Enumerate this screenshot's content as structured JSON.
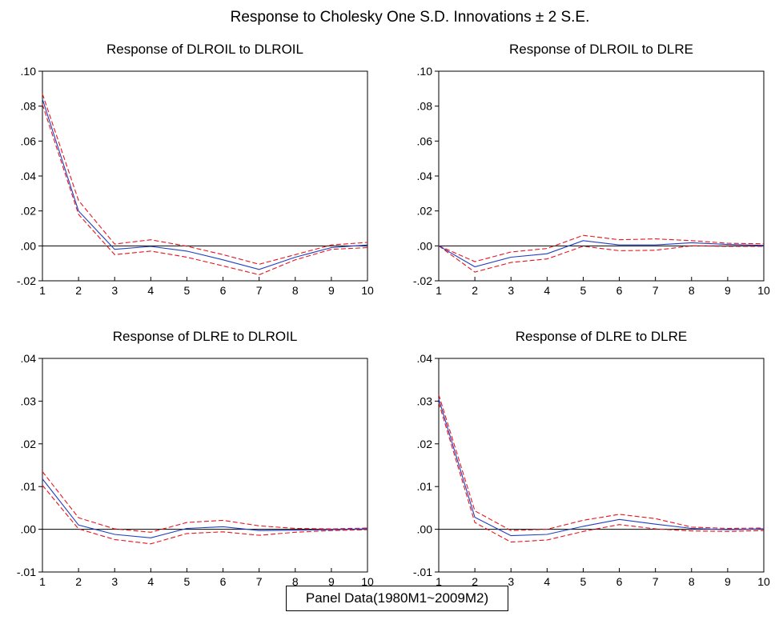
{
  "figure": {
    "title": "Response to Cholesky One S.D. Innovations ± 2 S.E.",
    "footer": "Panel Data(1980M1~2009M2)"
  },
  "colors": {
    "response": "#1f3fbf",
    "band": "#e8141c",
    "zero_line": "#000000",
    "frame": "#000000"
  },
  "chart_data": [
    {
      "type": "line",
      "title": "Response of DLROIL to DLROIL",
      "x": [
        1,
        2,
        3,
        4,
        5,
        6,
        7,
        8,
        9,
        10
      ],
      "x_ticks": [
        "1",
        "2",
        "3",
        "4",
        "5",
        "6",
        "7",
        "8",
        "9",
        "10"
      ],
      "ylim": [
        -0.02,
        0.1
      ],
      "y_ticks": [
        -0.02,
        0.0,
        0.02,
        0.04,
        0.06,
        0.08,
        0.1
      ],
      "y_tick_labels": [
        "-.02",
        ".00",
        ".02",
        ".04",
        ".06",
        ".08",
        ".10"
      ],
      "series": [
        {
          "role": "response",
          "values": [
            0.084,
            0.02,
            -0.002,
            -0.0003,
            -0.003,
            -0.008,
            -0.0135,
            -0.0065,
            -0.001,
            0.0005
          ]
        },
        {
          "role": "upper",
          "values": [
            0.087,
            0.026,
            0.001,
            0.0035,
            -0.0002,
            -0.005,
            -0.0105,
            -0.005,
            0.0005,
            0.002
          ]
        },
        {
          "role": "lower",
          "values": [
            0.081,
            0.018,
            -0.005,
            -0.003,
            -0.0065,
            -0.0115,
            -0.0165,
            -0.008,
            -0.002,
            -0.001
          ]
        }
      ],
      "zero_line": true
    },
    {
      "type": "line",
      "title": "Response of DLROIL to DLRE",
      "x": [
        1,
        2,
        3,
        4,
        5,
        6,
        7,
        8,
        9,
        10
      ],
      "x_ticks": [
        "1",
        "2",
        "3",
        "4",
        "5",
        "6",
        "7",
        "8",
        "9",
        "10"
      ],
      "ylim": [
        -0.02,
        0.1
      ],
      "y_ticks": [
        -0.02,
        0.0,
        0.02,
        0.04,
        0.06,
        0.08,
        0.1
      ],
      "y_tick_labels": [
        "-.02",
        ".00",
        ".02",
        ".04",
        ".06",
        ".08",
        ".10"
      ],
      "series": [
        {
          "role": "response",
          "values": [
            0.0,
            -0.012,
            -0.0065,
            -0.0045,
            0.003,
            0.0005,
            0.0005,
            0.0018,
            0.0008,
            0.0003
          ]
        },
        {
          "role": "upper",
          "values": [
            0.0,
            -0.009,
            -0.0035,
            -0.0015,
            0.006,
            0.0035,
            0.004,
            0.003,
            0.0015,
            0.0012
          ]
        },
        {
          "role": "lower",
          "values": [
            0.0,
            -0.015,
            -0.0095,
            -0.0075,
            -0.0002,
            -0.0028,
            -0.0025,
            0.0,
            -0.0003,
            -0.0003
          ]
        }
      ],
      "zero_line": true
    },
    {
      "type": "line",
      "title": "Response of DLRE to DLROIL",
      "x": [
        1,
        2,
        3,
        4,
        5,
        6,
        7,
        8,
        9,
        10
      ],
      "x_ticks": [
        "1",
        "2",
        "3",
        "4",
        "5",
        "6",
        "7",
        "8",
        "9",
        "10"
      ],
      "ylim": [
        -0.01,
        0.04
      ],
      "y_ticks": [
        -0.01,
        0.0,
        0.01,
        0.02,
        0.03,
        0.04
      ],
      "y_tick_labels": [
        "-.01",
        ".00",
        ".01",
        ".02",
        ".03",
        ".04"
      ],
      "series": [
        {
          "role": "response",
          "values": [
            0.0118,
            0.001,
            -0.0012,
            -0.002,
            0.0002,
            0.0006,
            -0.0003,
            -0.0002,
            -0.0001,
            0.0001
          ]
        },
        {
          "role": "upper",
          "values": [
            0.0135,
            0.0027,
            0.0001,
            -0.0007,
            0.0016,
            0.0021,
            0.0008,
            0.0002,
            0.0001,
            0.0003
          ]
        },
        {
          "role": "lower",
          "values": [
            0.0103,
            0.0001,
            -0.0024,
            -0.0034,
            -0.001,
            -0.0006,
            -0.0014,
            -0.0007,
            -0.0003,
            -0.0001
          ]
        }
      ],
      "zero_line": true
    },
    {
      "type": "line",
      "title": "Response of DLRE to DLRE",
      "x": [
        1,
        2,
        3,
        4,
        5,
        6,
        7,
        8,
        9,
        10
      ],
      "x_ticks": [
        "1",
        "2",
        "3",
        "4",
        "5",
        "6",
        "7",
        "8",
        "9",
        "10"
      ],
      "ylim": [
        -0.01,
        0.04
      ],
      "y_ticks": [
        -0.01,
        0.0,
        0.01,
        0.02,
        0.03,
        0.04
      ],
      "y_tick_labels": [
        "-.01",
        ".00",
        ".01",
        ".02",
        ".03",
        ".04"
      ],
      "series": [
        {
          "role": "response",
          "values": [
            0.0305,
            0.0028,
            -0.0015,
            -0.0012,
            0.0007,
            0.0023,
            0.0012,
            0.0002,
            -0.0001,
            0.0001
          ]
        },
        {
          "role": "upper",
          "values": [
            0.0315,
            0.0043,
            -0.0003,
            0.0,
            0.0021,
            0.0035,
            0.0025,
            0.0005,
            0.0002,
            0.0003
          ]
        },
        {
          "role": "lower",
          "values": [
            0.0296,
            0.0016,
            -0.003,
            -0.0025,
            -0.0005,
            0.0011,
            0.0001,
            -0.0004,
            -0.0005,
            -0.0003
          ]
        }
      ],
      "zero_line": true
    }
  ]
}
